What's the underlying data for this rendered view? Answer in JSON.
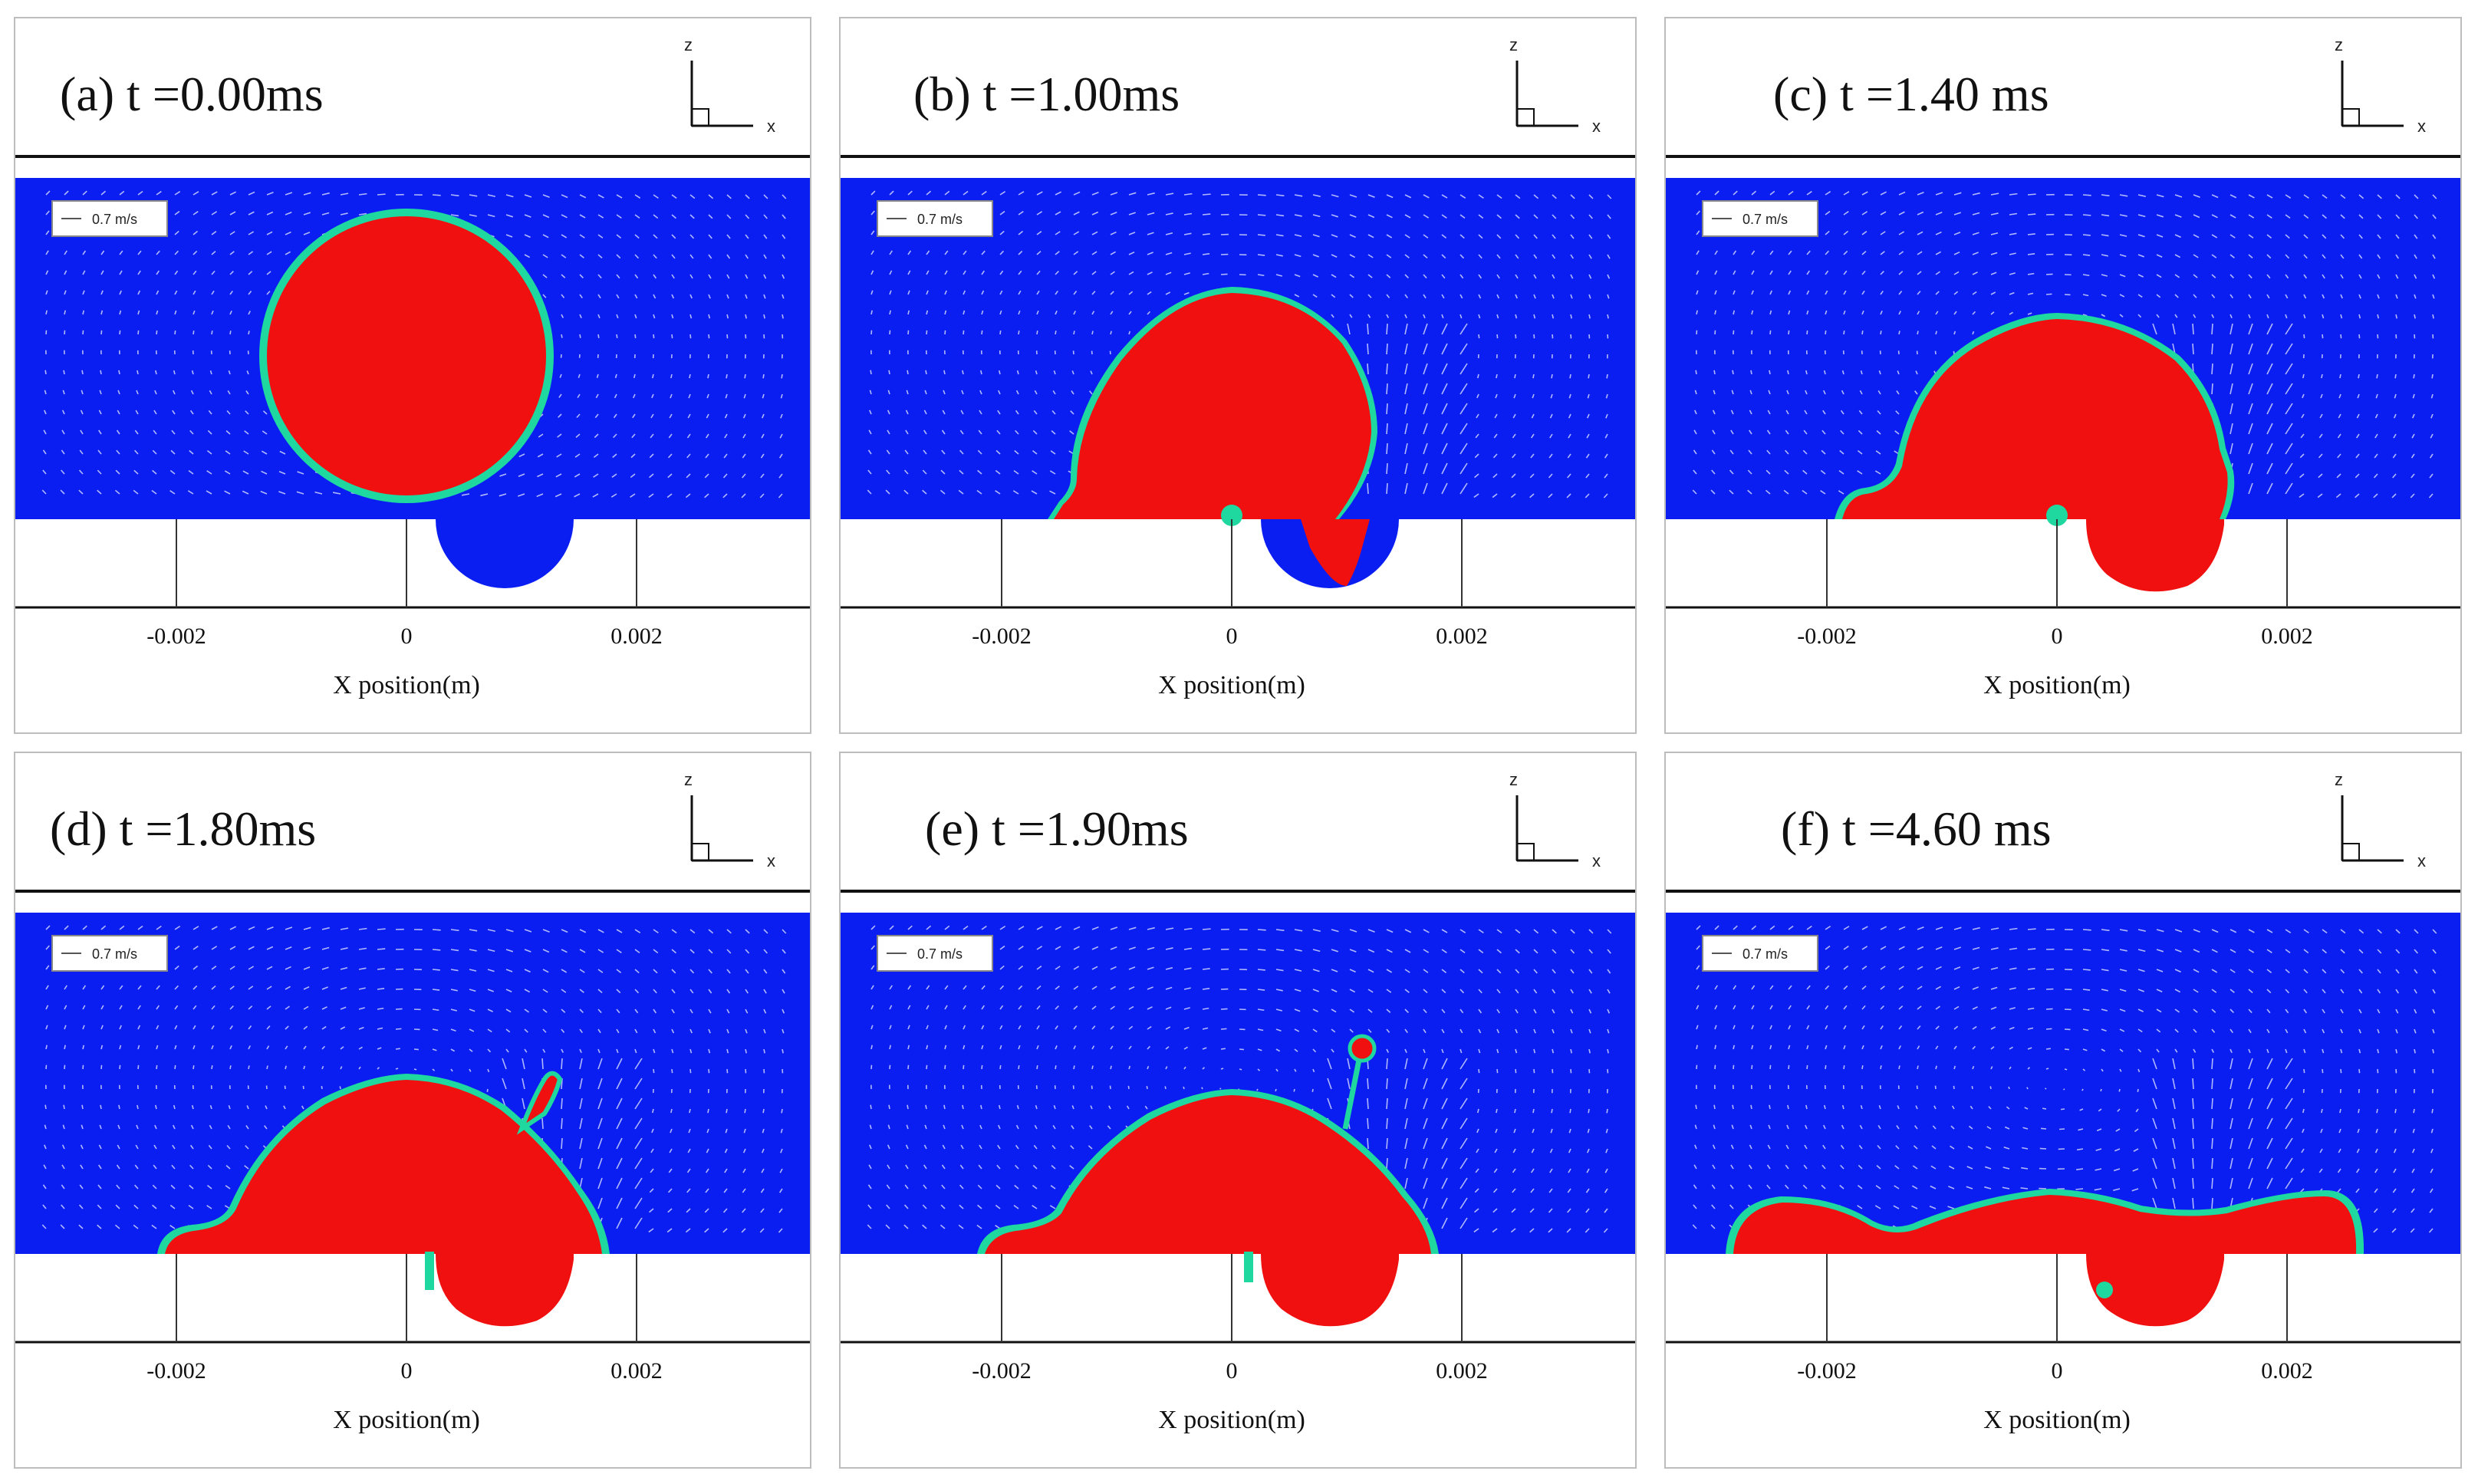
{
  "figure": {
    "colors": {
      "gas": "#0a1ef2",
      "liquid": "#f01010",
      "interface": "#1fd8a0",
      "vector": "#e8ecff",
      "frame": "#bdbdbd"
    },
    "x_axis_title": "X  position(m)",
    "x_ticks": [
      "-0.002",
      "0",
      "0.002"
    ],
    "axes_labels": {
      "z": "z",
      "x": "x"
    },
    "velocity_legend": "0.7 m/s"
  },
  "panels": [
    {
      "caption": "(a) t =0.00ms",
      "stage": 0
    },
    {
      "caption": "(b) t =1.00ms",
      "stage": 1
    },
    {
      "caption": "(c) t =1.40 ms",
      "stage": 2
    },
    {
      "caption": "(d) t =1.80ms",
      "stage": 3
    },
    {
      "caption": "(e) t =1.90ms",
      "stage": 4
    },
    {
      "caption": "(f) t =4.60 ms",
      "stage": 5
    }
  ]
}
